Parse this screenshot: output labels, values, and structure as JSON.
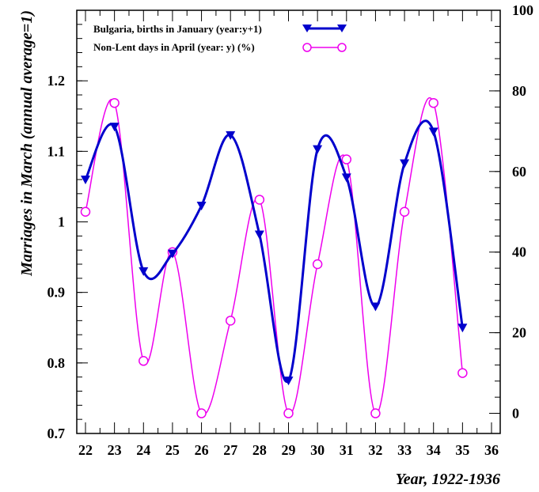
{
  "chart_data": {
    "type": "line",
    "xlabel": "Year, 1922-1936",
    "ylabel": "Marriages in March (annual average=1)",
    "y2label": "",
    "xlim": [
      21.7,
      36.3
    ],
    "ylim": [
      0.7,
      1.3
    ],
    "y2lim": [
      -5,
      100
    ],
    "x_ticks": [
      22,
      23,
      24,
      25,
      26,
      27,
      28,
      29,
      30,
      31,
      32,
      33,
      34,
      35,
      36
    ],
    "x_tick_labels": [
      "22",
      "23",
      "24",
      "25",
      "26",
      "27",
      "28",
      "29",
      "30",
      "31",
      "32",
      "33",
      "34",
      "35",
      "36"
    ],
    "y_ticks": [
      0.7,
      0.8,
      0.9,
      1.0,
      1.1,
      1.2
    ],
    "y_tick_labels": [
      "0.7",
      "0.8",
      "0.9",
      "1",
      "1.1",
      "1.2"
    ],
    "y2_ticks": [
      0,
      20,
      40,
      60,
      80,
      100
    ],
    "y2_tick_labels": [
      "0",
      "20",
      "40",
      "60",
      "80",
      "100"
    ],
    "legend_position": "top-left",
    "grid": false,
    "series": [
      {
        "name": "Bulgaria, births in January (year:y+1)",
        "axis": "left",
        "color": "#0000cc",
        "marker": "triangle-down",
        "x": [
          22,
          23,
          24,
          25,
          26,
          27,
          28,
          29,
          30,
          31,
          32,
          33,
          34,
          35
        ],
        "y": [
          1.06,
          1.135,
          0.93,
          0.955,
          1.023,
          1.123,
          0.982,
          0.775,
          1.103,
          1.063,
          0.88,
          1.083,
          1.128,
          0.85
        ]
      },
      {
        "name": "Non-Lent days in April (year: y) (%)",
        "axis": "right",
        "color": "#ee00ee",
        "marker": "open-circle",
        "x": [
          22,
          23,
          24,
          25,
          26,
          27,
          28,
          29,
          30,
          31,
          32,
          33,
          34,
          35
        ],
        "y": [
          50,
          77,
          13,
          40,
          0,
          23,
          53,
          0,
          37,
          63,
          0,
          50,
          77,
          10
        ]
      }
    ]
  }
}
